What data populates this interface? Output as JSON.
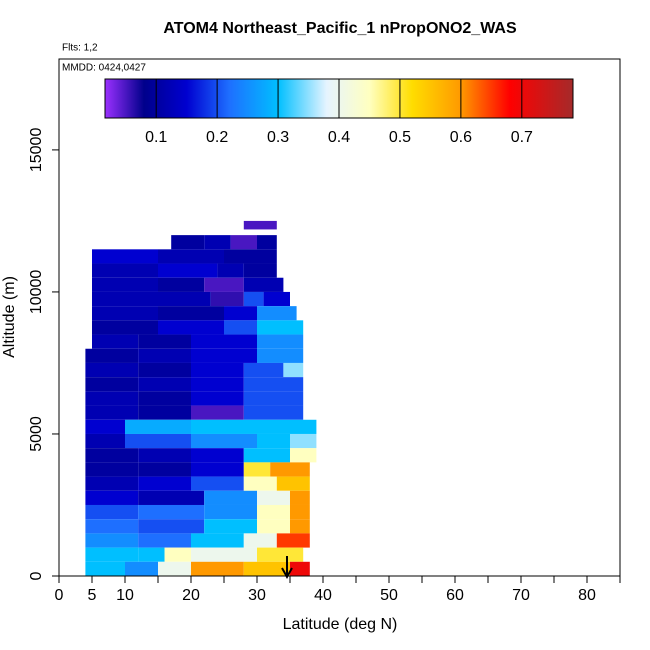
{
  "chart_data": {
    "type": "curtain",
    "title": "ATOM4 Northeast_Pacific_1 nPropONO2_WAS",
    "subtitle": "Flts: 1,2",
    "annotation": "MMDD: 0424,0427",
    "xlabel": "Latitude (deg N)",
    "ylabel": "Altitude (m)",
    "xlim": [
      0,
      85
    ],
    "ylim": [
      0,
      18200
    ],
    "xticks": [
      0,
      5,
      10,
      20,
      30,
      40,
      50,
      60,
      70,
      80
    ],
    "xminorticks": [
      15,
      25,
      35,
      45,
      55,
      65,
      75,
      85
    ],
    "yticks": [
      0,
      5000,
      10000,
      15000
    ],
    "clim": [
      0.016,
      0.784
    ],
    "cticks": [
      0.1,
      0.2,
      0.3,
      0.4,
      0.5,
      0.6,
      0.7
    ],
    "colorscale": [
      [
        0.016,
        "#9b30ff"
      ],
      [
        0.08,
        "#00008b"
      ],
      [
        0.15,
        "#0000d0"
      ],
      [
        0.22,
        "#1e6fff"
      ],
      [
        0.3,
        "#00bfff"
      ],
      [
        0.38,
        "#e6f4ff"
      ],
      [
        0.45,
        "#ffffc0"
      ],
      [
        0.52,
        "#ffdd00"
      ],
      [
        0.6,
        "#ff9900"
      ],
      [
        0.68,
        "#ff0000"
      ],
      [
        0.784,
        "#a52a2a"
      ]
    ],
    "rows": [
      {
        "alt": [
          12200,
          12500
        ],
        "lat": [
          28,
          33
        ],
        "values": [
          0.05
        ]
      },
      {
        "alt": [
          11500,
          12000
        ],
        "lat": [
          17,
          22,
          26,
          30,
          33
        ],
        "values": [
          0.1,
          0.12,
          0.05,
          0.1
        ]
      },
      {
        "alt": [
          11000,
          11500
        ],
        "lat": [
          5,
          15,
          25,
          33
        ],
        "values": [
          0.15,
          0.12,
          0.1
        ]
      },
      {
        "alt": [
          10500,
          11000
        ],
        "lat": [
          5,
          15,
          24,
          28,
          33
        ],
        "values": [
          0.12,
          0.15,
          0.12,
          0.1
        ]
      },
      {
        "alt": [
          10000,
          10500
        ],
        "lat": [
          5,
          15,
          22,
          28,
          34
        ],
        "values": [
          0.12,
          0.1,
          0.05,
          0.12
        ]
      },
      {
        "alt": [
          9500,
          10000
        ],
        "lat": [
          5,
          15,
          23,
          28,
          31,
          35
        ],
        "values": [
          0.12,
          0.12,
          0.06,
          0.2,
          0.15
        ]
      },
      {
        "alt": [
          9000,
          9500
        ],
        "lat": [
          5,
          15,
          25,
          30,
          36
        ],
        "values": [
          0.12,
          0.1,
          0.15,
          0.25
        ]
      },
      {
        "alt": [
          8500,
          9000
        ],
        "lat": [
          5,
          15,
          25,
          30,
          37
        ],
        "values": [
          0.1,
          0.15,
          0.2,
          0.3
        ]
      },
      {
        "alt": [
          8000,
          8500
        ],
        "lat": [
          5,
          12,
          20,
          30,
          37
        ],
        "values": [
          0.12,
          0.1,
          0.15,
          0.25
        ]
      },
      {
        "alt": [
          7500,
          8000
        ],
        "lat": [
          4,
          12,
          20,
          30,
          37
        ],
        "values": [
          0.1,
          0.12,
          0.15,
          0.25
        ]
      },
      {
        "alt": [
          7000,
          7500
        ],
        "lat": [
          4,
          12,
          20,
          28,
          34,
          37
        ],
        "values": [
          0.12,
          0.1,
          0.15,
          0.2,
          0.35
        ]
      },
      {
        "alt": [
          6500,
          7000
        ],
        "lat": [
          4,
          12,
          20,
          28,
          37
        ],
        "values": [
          0.1,
          0.12,
          0.15,
          0.2
        ]
      },
      {
        "alt": [
          6000,
          6500
        ],
        "lat": [
          4,
          12,
          20,
          28,
          37
        ],
        "values": [
          0.12,
          0.1,
          0.15,
          0.2
        ]
      },
      {
        "alt": [
          5500,
          6000
        ],
        "lat": [
          4,
          12,
          20,
          28,
          37
        ],
        "values": [
          0.12,
          0.1,
          0.05,
          0.2
        ]
      },
      {
        "alt": [
          5000,
          5500
        ],
        "lat": [
          4,
          10,
          20,
          30,
          39
        ],
        "values": [
          0.15,
          0.28,
          0.3,
          0.3
        ]
      },
      {
        "alt": [
          4500,
          5000
        ],
        "lat": [
          4,
          10,
          20,
          30,
          35,
          39
        ],
        "values": [
          0.12,
          0.2,
          0.25,
          0.3,
          0.35
        ]
      },
      {
        "alt": [
          4000,
          4500
        ],
        "lat": [
          4,
          12,
          20,
          28,
          35,
          39
        ],
        "values": [
          0.1,
          0.12,
          0.15,
          0.3,
          0.45
        ]
      },
      {
        "alt": [
          3500,
          4000
        ],
        "lat": [
          4,
          12,
          20,
          28,
          32,
          38
        ],
        "values": [
          0.1,
          0.1,
          0.15,
          0.5,
          0.6
        ]
      },
      {
        "alt": [
          3000,
          3500
        ],
        "lat": [
          4,
          12,
          20,
          28,
          33,
          38
        ],
        "values": [
          0.12,
          0.15,
          0.2,
          0.45,
          0.55
        ]
      },
      {
        "alt": [
          2500,
          3000
        ],
        "lat": [
          4,
          12,
          22,
          30,
          35,
          38
        ],
        "values": [
          0.15,
          0.12,
          0.25,
          0.4,
          0.6
        ]
      },
      {
        "alt": [
          2000,
          2500
        ],
        "lat": [
          4,
          12,
          22,
          30,
          35,
          38
        ],
        "values": [
          0.2,
          0.22,
          0.25,
          0.45,
          0.6
        ]
      },
      {
        "alt": [
          1500,
          2000
        ],
        "lat": [
          4,
          12,
          22,
          30,
          35,
          38
        ],
        "values": [
          0.22,
          0.2,
          0.3,
          0.45,
          0.6
        ]
      },
      {
        "alt": [
          1000,
          1500
        ],
        "lat": [
          4,
          12,
          20,
          28,
          33,
          38
        ],
        "values": [
          0.25,
          0.22,
          0.3,
          0.4,
          0.65
        ]
      },
      {
        "alt": [
          500,
          1000
        ],
        "lat": [
          4,
          12,
          16,
          20,
          30,
          37
        ],
        "values": [
          0.3,
          0.3,
          0.45,
          0.4,
          0.5
        ]
      },
      {
        "alt": [
          0,
          500
        ],
        "lat": [
          4,
          10,
          15,
          20,
          28,
          35,
          38
        ],
        "values": [
          0.3,
          0.25,
          0.4,
          0.6,
          0.55,
          0.7
        ]
      }
    ]
  }
}
